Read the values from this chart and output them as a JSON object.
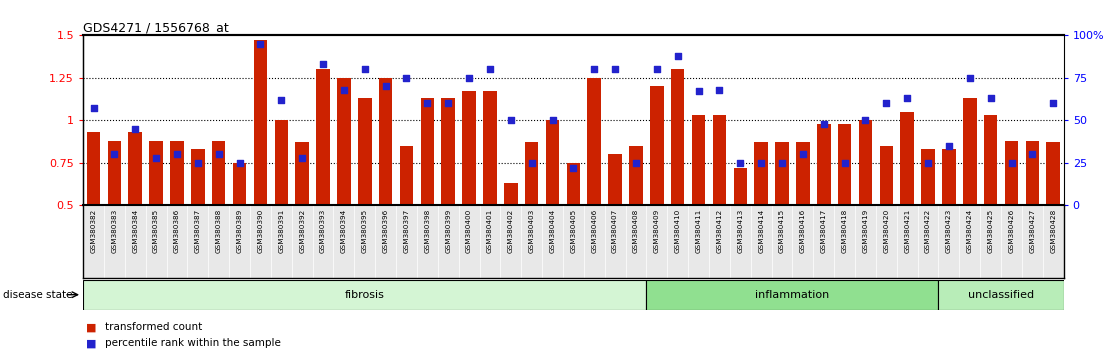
{
  "title": "GDS4271 / 1556768_at",
  "samples": [
    "GSM380382",
    "GSM380383",
    "GSM380384",
    "GSM380385",
    "GSM380386",
    "GSM380387",
    "GSM380388",
    "GSM380389",
    "GSM380390",
    "GSM380391",
    "GSM380392",
    "GSM380393",
    "GSM380394",
    "GSM380395",
    "GSM380396",
    "GSM380397",
    "GSM380398",
    "GSM380399",
    "GSM380400",
    "GSM380401",
    "GSM380402",
    "GSM380403",
    "GSM380404",
    "GSM380405",
    "GSM380406",
    "GSM380407",
    "GSM380408",
    "GSM380409",
    "GSM380410",
    "GSM380411",
    "GSM380412",
    "GSM380413",
    "GSM380414",
    "GSM380415",
    "GSM380416",
    "GSM380417",
    "GSM380418",
    "GSM380419",
    "GSM380420",
    "GSM380421",
    "GSM380422",
    "GSM380423",
    "GSM380424",
    "GSM380425",
    "GSM380426",
    "GSM380427",
    "GSM380428"
  ],
  "red_values": [
    0.93,
    0.88,
    0.93,
    0.88,
    0.88,
    0.83,
    0.88,
    0.75,
    1.47,
    1.0,
    0.87,
    1.3,
    1.25,
    1.13,
    1.25,
    0.85,
    1.13,
    1.13,
    1.17,
    1.17,
    0.63,
    0.87,
    1.0,
    0.75,
    1.25,
    0.8,
    0.85,
    1.2,
    1.3,
    1.03,
    1.03,
    0.72,
    0.87,
    0.87,
    0.87,
    0.98,
    0.98,
    1.0,
    0.85,
    1.05,
    0.83,
    0.83,
    1.13,
    1.03,
    0.88,
    0.88,
    0.87
  ],
  "blue_pct": [
    57,
    30,
    45,
    28,
    30,
    25,
    30,
    25,
    95,
    62,
    28,
    83,
    68,
    80,
    70,
    75,
    60,
    60,
    75,
    80,
    50,
    25,
    50,
    22,
    80,
    80,
    25,
    80,
    88,
    67,
    68,
    25,
    25,
    25,
    30,
    48,
    25,
    50,
    60,
    63,
    25,
    35,
    75,
    63,
    25,
    30,
    60
  ],
  "groups": [
    {
      "label": "fibrosis",
      "start": 0,
      "end": 27,
      "color": "#d4f5d4"
    },
    {
      "label": "inflammation",
      "start": 27,
      "end": 41,
      "color": "#90e090"
    },
    {
      "label": "unclassified",
      "start": 41,
      "end": 47,
      "color": "#b8edb8"
    }
  ],
  "ylim_left": [
    0.5,
    1.5
  ],
  "ylim_right": [
    0,
    100
  ],
  "yticks_left": [
    0.5,
    0.75,
    1.0,
    1.25,
    1.5
  ],
  "yticks_right": [
    0,
    25,
    50,
    75,
    100
  ],
  "ytick_labels_left": [
    "0.5",
    "0.75",
    "1",
    "1.25",
    "1.5"
  ],
  "ytick_labels_right": [
    "0",
    "25",
    "50",
    "75",
    "100%"
  ],
  "hlines": [
    0.75,
    1.0,
    1.25
  ],
  "bar_color": "#cc2200",
  "dot_color": "#2222cc",
  "bar_width": 0.65,
  "plot_bg": "#f0f0f0",
  "tick_label_bg": "#d8d8d8"
}
